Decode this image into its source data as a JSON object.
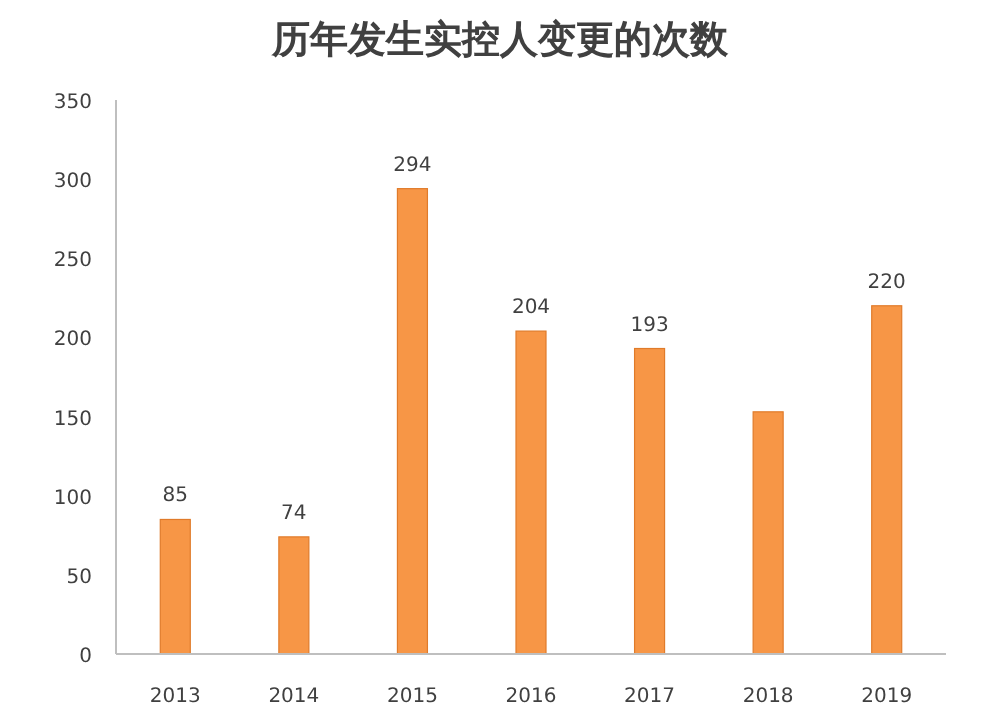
{
  "chart_data": {
    "type": "bar",
    "title": "历年发生实控人变更的次数",
    "categories": [
      "2013",
      "2014",
      "2015",
      "2016",
      "2017",
      "2018",
      "2019"
    ],
    "values": [
      85,
      74,
      294,
      204,
      193,
      153,
      220
    ],
    "value_labels": [
      "85",
      "74",
      "294",
      "204",
      "193",
      null,
      "220"
    ],
    "color": "#f79646",
    "ylim": [
      0,
      350
    ],
    "yticks": [
      0,
      50,
      100,
      150,
      200,
      250,
      300,
      350
    ]
  }
}
